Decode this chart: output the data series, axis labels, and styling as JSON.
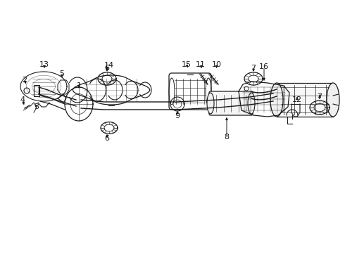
{
  "bg_color": "#ffffff",
  "line_color": "#1a1a1a",
  "text_color": "#1a1a1a",
  "fig_width": 4.9,
  "fig_height": 3.6,
  "dpi": 100
}
